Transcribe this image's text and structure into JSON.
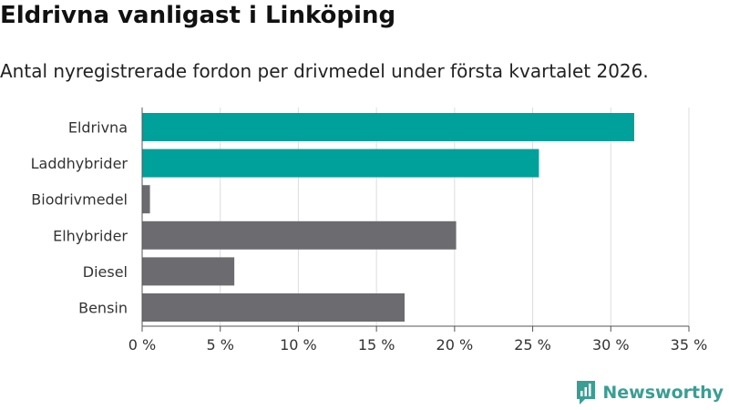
{
  "header": {
    "title": "Eldrivna vanligast i Linköping",
    "subtitle": "Antal nyregistrerade fordon per drivmedel under första kvartalet 2026."
  },
  "logo": {
    "text": "Newsworthy",
    "icon": "newsworthy-logo-icon",
    "color": "#3a9e93"
  },
  "chart_data": {
    "type": "bar",
    "orientation": "horizontal",
    "title": "Eldrivna vanligast i Linköping",
    "subtitle": "Antal nyregistrerade fordon per drivmedel under första kvartalet 2026.",
    "categories": [
      "Eldrivna",
      "Laddhybrider",
      "Biodrivmedel",
      "Elhybrider",
      "Diesel",
      "Bensin"
    ],
    "values": [
      31.5,
      25.4,
      0.5,
      20.1,
      5.9,
      16.8
    ],
    "value_unit": "%",
    "highlight": [
      true,
      true,
      false,
      false,
      false,
      false
    ],
    "colors": {
      "highlight": "#00a19a",
      "default": "#6c6b70",
      "grid": "#dddddd",
      "axis": "#555555"
    },
    "xlim": [
      0,
      35
    ],
    "ticks": [
      {
        "value": 0,
        "label": "0 %"
      },
      {
        "value": 5,
        "label": "5 %"
      },
      {
        "value": 10,
        "label": "10 %"
      },
      {
        "value": 15,
        "label": "15 %"
      },
      {
        "value": 20,
        "label": "20 %"
      },
      {
        "value": 25,
        "label": "25 %"
      },
      {
        "value": 30,
        "label": "30 %"
      },
      {
        "value": 35,
        "label": "35 %"
      }
    ],
    "grid": true,
    "legend": "none"
  }
}
